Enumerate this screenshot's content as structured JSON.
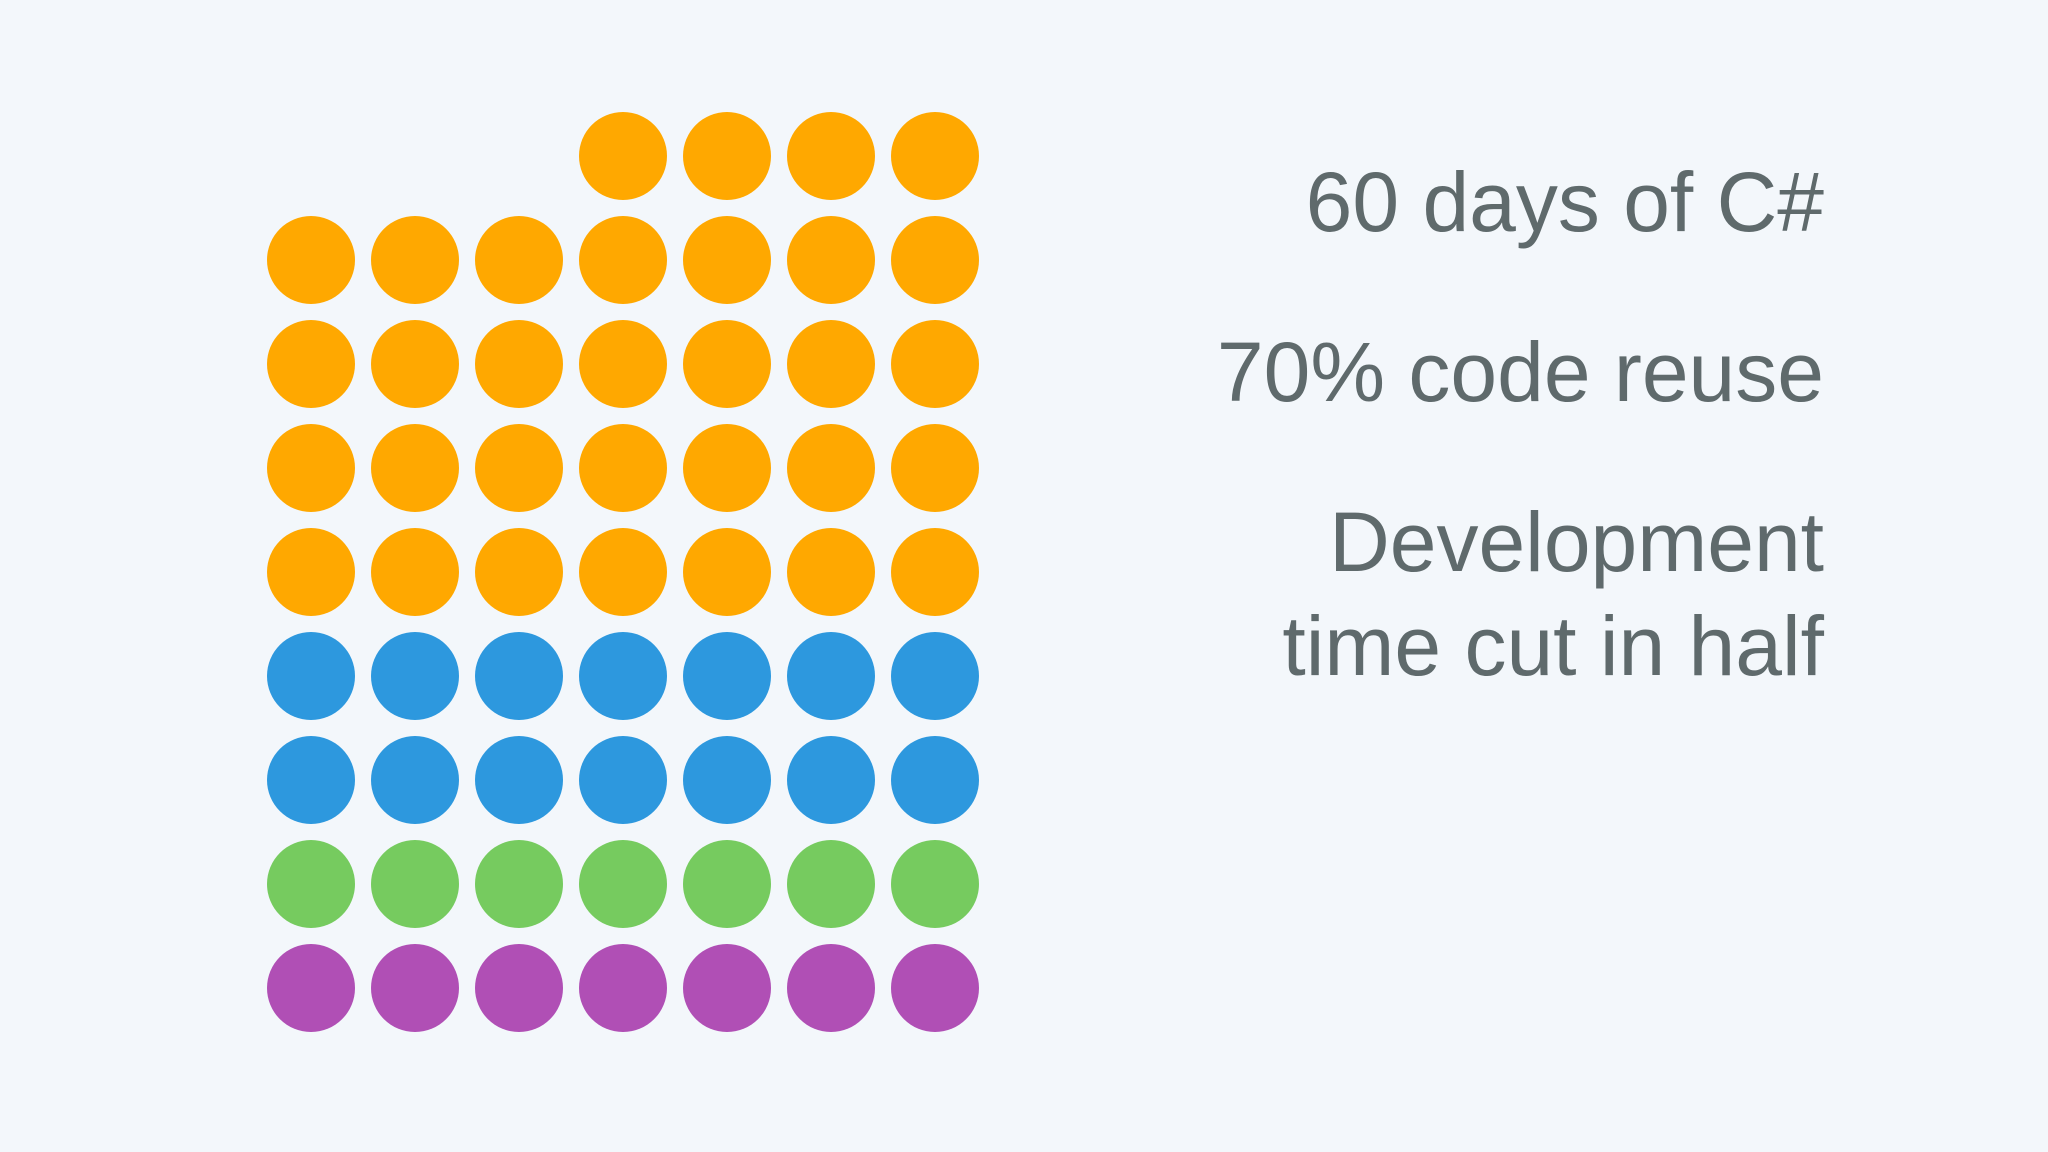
{
  "colors": {
    "background": "#f3f7fb",
    "text": "#5f6a6c"
  },
  "dot_grid": {
    "columns": 7,
    "rows": [
      {
        "start_col": 3,
        "count": 4,
        "color": "#ffa800"
      },
      {
        "start_col": 0,
        "count": 7,
        "color": "#ffa800"
      },
      {
        "start_col": 0,
        "count": 7,
        "color": "#ffa800"
      },
      {
        "start_col": 0,
        "count": 7,
        "color": "#ffa800"
      },
      {
        "start_col": 0,
        "count": 7,
        "color": "#ffa800"
      },
      {
        "start_col": 0,
        "count": 7,
        "color": "#2d98de"
      },
      {
        "start_col": 0,
        "count": 7,
        "color": "#2d98de"
      },
      {
        "start_col": 0,
        "count": 7,
        "color": "#76cb5f"
      },
      {
        "start_col": 0,
        "count": 7,
        "color": "#b04fb5"
      }
    ]
  },
  "stats": {
    "days": "60 days of C#",
    "reuse": "70% code reuse",
    "time": "Development\ntime cut in half"
  }
}
